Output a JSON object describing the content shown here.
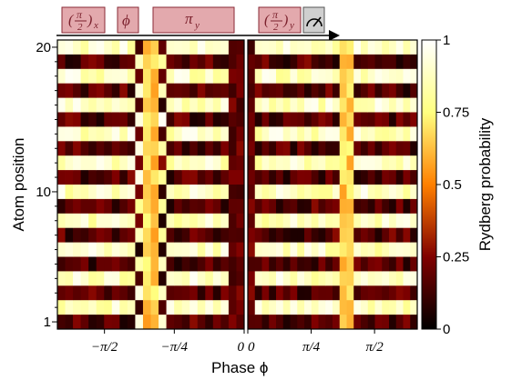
{
  "pulse_sequence": {
    "arrow": "sequence-arrow",
    "pulses": [
      {
        "label": "(π/2)x",
        "color": "#e3a9ad"
      },
      {
        "label": "ϕ",
        "color": "#e3a9ad"
      },
      {
        "label": "πy",
        "color": "#e3a9ad"
      },
      {
        "label": "(π/2)y",
        "color": "#e3a9ad"
      },
      {
        "label": "measure",
        "icon": "meter-icon",
        "color": "#cfcfcf"
      }
    ]
  },
  "chart_data": {
    "type": "heatmap",
    "xlabel": "Phase ϕ",
    "ylabel": "Atom position",
    "colorbar_label": "Rydberg probability",
    "colormap": "afmhot",
    "ylim": [
      1,
      20
    ],
    "y_ticks": [
      "1",
      "10",
      "20"
    ],
    "colorbar_ticks": [
      "0",
      "0.25",
      "0.5",
      "0.75",
      "1"
    ],
    "panels": [
      {
        "name": "negative-phase",
        "xlim": [
          -2.1,
          0.0
        ],
        "x_tick_labels": [
          "−π/2",
          "−π/4",
          "0"
        ],
        "x_tick_values": [
          -1.5708,
          -0.7854,
          0.0
        ],
        "columns": 24,
        "rows": 20,
        "description_values": "row-alternating (even/odd atoms) stripe pattern with a contrast inversion near −0.94"
      },
      {
        "name": "positive-phase",
        "xlim": [
          0.0,
          2.1
        ],
        "x_tick_labels": [
          "0",
          "π/4",
          "π/2"
        ],
        "x_tick_values": [
          0.0,
          0.7854,
          1.5708
        ],
        "columns": 24,
        "rows": 20,
        "description_values": "row-alternating (even/odd atoms) stripe pattern with a contrast inversion near 1.18"
      }
    ],
    "cell_value_model": {
      "even_row_high_regions": [
        [
          -2.1,
          -1.2
        ],
        [
          -0.9,
          -0.15
        ],
        [
          0.05,
          1.1
        ],
        [
          1.3,
          2.1
        ]
      ],
      "center_low_band": [
        -0.15,
        0.05
      ],
      "transition_columns": [
        -1.05,
        1.2
      ]
    }
  }
}
